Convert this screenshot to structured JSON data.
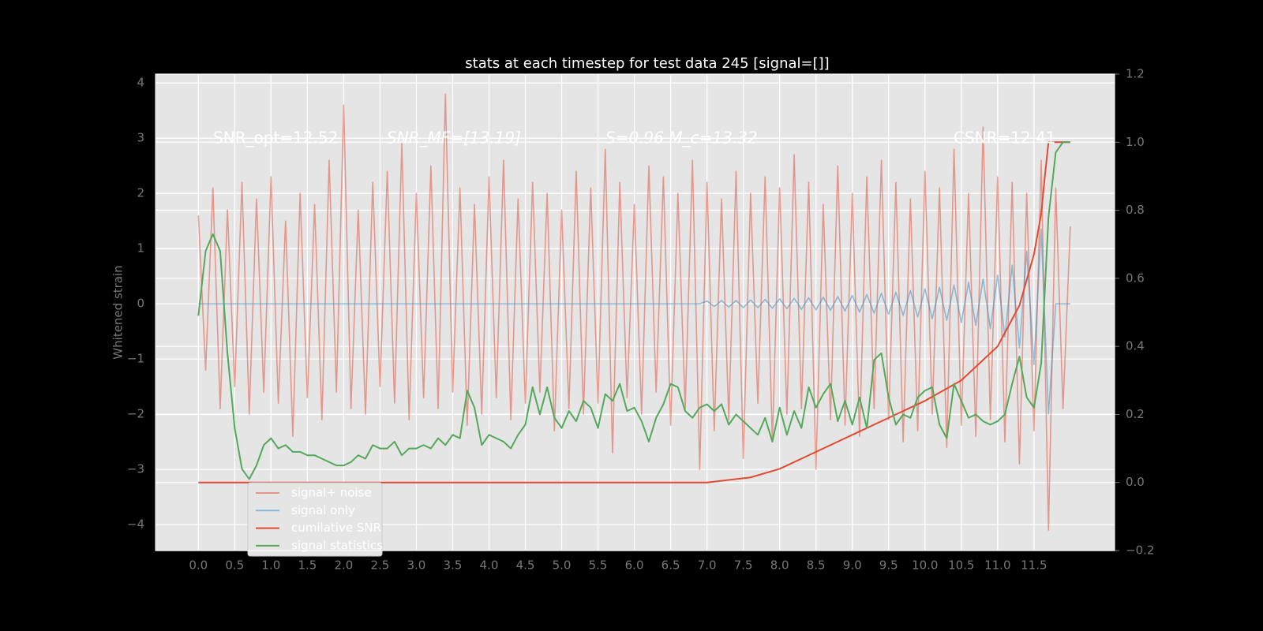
{
  "chart_data": {
    "type": "line",
    "title": "stats at each timestep for test data 245 [signal=[]]",
    "y_label": "Whitened strain",
    "annotations": [
      "SNR_opt=12.52",
      "SNR_MF=[13.19]",
      "S=0.96   M_c=13.32",
      "CSNR=12.41"
    ],
    "x": [
      0,
      0.1,
      0.2,
      0.3,
      0.4,
      0.5,
      0.6,
      0.7,
      0.8,
      0.9,
      1.0,
      1.1,
      1.2,
      1.3,
      1.4,
      1.5,
      1.6,
      1.7,
      1.8,
      1.9,
      2.0,
      2.1,
      2.2,
      2.3,
      2.4,
      2.5,
      2.6,
      2.7,
      2.8,
      2.9,
      3.0,
      3.1,
      3.2,
      3.3,
      3.4,
      3.5,
      3.6,
      3.7,
      3.8,
      3.9,
      4.0,
      4.1,
      4.2,
      4.3,
      4.4,
      4.5,
      4.6,
      4.7,
      4.8,
      4.9,
      5.0,
      5.1,
      5.2,
      5.3,
      5.4,
      5.5,
      5.6,
      5.7,
      5.8,
      5.9,
      6.0,
      6.1,
      6.2,
      6.3,
      6.4,
      6.5,
      6.6,
      6.7,
      6.8,
      6.9,
      7.0,
      7.1,
      7.2,
      7.3,
      7.4,
      7.5,
      7.6,
      7.7,
      7.8,
      7.9,
      8.0,
      8.1,
      8.2,
      8.3,
      8.4,
      8.5,
      8.6,
      8.7,
      8.8,
      8.9,
      9.0,
      9.1,
      9.2,
      9.3,
      9.4,
      9.5,
      9.6,
      9.7,
      9.8,
      9.9,
      10.0,
      10.1,
      10.2,
      10.3,
      10.4,
      10.5,
      10.6,
      10.7,
      10.8,
      10.9,
      11.0,
      11.1,
      11.2,
      11.3,
      11.4,
      11.5,
      11.6,
      11.7,
      11.8,
      11.9,
      12.0
    ],
    "series": [
      {
        "name": "signal+ noise",
        "color": "#E24A33",
        "opacity": 0.5,
        "axis": "y",
        "values": [
          1.6,
          -1.2,
          2.1,
          -1.9,
          1.7,
          -1.5,
          2.2,
          -2.0,
          1.9,
          -1.6,
          2.3,
          -1.8,
          1.5,
          -2.4,
          2.0,
          -1.7,
          1.8,
          -2.1,
          2.6,
          -1.6,
          3.6,
          -1.9,
          1.7,
          -2.0,
          2.2,
          -1.5,
          2.4,
          -1.8,
          2.9,
          -2.1,
          2.0,
          -1.7,
          2.5,
          -1.9,
          3.8,
          -1.6,
          2.1,
          -2.2,
          1.8,
          -2.0,
          2.3,
          -1.7,
          2.6,
          -2.1,
          1.9,
          -1.8,
          2.2,
          -1.6,
          2.0,
          -2.3,
          1.7,
          -1.9,
          2.4,
          -2.0,
          2.1,
          -1.8,
          2.8,
          -2.7,
          2.2,
          -1.7,
          1.8,
          -2.0,
          2.5,
          -1.6,
          2.3,
          -2.2,
          2.0,
          -1.9,
          2.6,
          -3.0,
          2.2,
          -2.3,
          1.9,
          -2.1,
          2.4,
          -2.8,
          2.0,
          -1.8,
          2.3,
          -2.5,
          2.1,
          -2.0,
          2.7,
          -1.9,
          2.2,
          -3.0,
          1.8,
          -2.1,
          2.5,
          -2.2,
          2.0,
          -2.4,
          2.3,
          -1.9,
          2.6,
          -2.1,
          2.2,
          -2.5,
          1.9,
          -2.3,
          2.4,
          -2.0,
          2.1,
          -2.6,
          2.8,
          -2.2,
          2.0,
          -2.4,
          3.2,
          -2.1,
          2.3,
          -2.5,
          2.2,
          -2.9,
          2.0,
          -2.3,
          2.6,
          -4.1,
          2.1,
          -1.9,
          1.4
        ]
      },
      {
        "name": "signal only",
        "color": "#348ABD",
        "opacity": 0.5,
        "axis": "y",
        "values": [
          0,
          0,
          0,
          0,
          0,
          0,
          0,
          0,
          0,
          0,
          0,
          0,
          0,
          0,
          0,
          0,
          0,
          0,
          0,
          0,
          0,
          0,
          0,
          0,
          0,
          0,
          0,
          0,
          0,
          0,
          0,
          0,
          0,
          0,
          0,
          0,
          0,
          0,
          0,
          0,
          0,
          0,
          0,
          0,
          0,
          0,
          0,
          0,
          0,
          0,
          0,
          0,
          0,
          0,
          0,
          0,
          0,
          0,
          0,
          0,
          0,
          0,
          0,
          0,
          0,
          0,
          0,
          0,
          0,
          0,
          0.05,
          -0.05,
          0.06,
          -0.06,
          0.06,
          -0.07,
          0.07,
          -0.07,
          0.08,
          -0.08,
          0.09,
          -0.09,
          0.1,
          -0.1,
          0.11,
          -0.11,
          0.12,
          -0.12,
          0.13,
          -0.13,
          0.15,
          -0.15,
          0.17,
          -0.17,
          0.19,
          -0.19,
          0.21,
          -0.21,
          0.24,
          -0.24,
          0.27,
          -0.27,
          0.3,
          -0.3,
          0.34,
          -0.34,
          0.39,
          -0.39,
          0.45,
          -0.45,
          0.52,
          -0.6,
          0.7,
          -0.8,
          0.95,
          -1.1,
          1.35,
          -2.0,
          0,
          0,
          0
        ]
      },
      {
        "name": "cumilative SNR",
        "color": "#E24A33",
        "opacity": 1,
        "axis": "y2",
        "x": [
          0,
          7.0,
          7.6,
          8.0,
          8.5,
          9.0,
          9.5,
          10.0,
          10.5,
          11.0,
          11.3,
          11.5,
          11.6,
          11.65,
          11.7,
          12.0
        ],
        "values": [
          0,
          0,
          0.015,
          0.04,
          0.09,
          0.14,
          0.19,
          0.24,
          0.3,
          0.4,
          0.52,
          0.67,
          0.79,
          0.9,
          1.0,
          1.0
        ]
      },
      {
        "name": "signal statistics",
        "color": "#55a85a",
        "opacity": 1,
        "axis": "y2",
        "values": [
          0.49,
          0.68,
          0.73,
          0.68,
          0.38,
          0.16,
          0.04,
          0.01,
          0.05,
          0.11,
          0.13,
          0.1,
          0.11,
          0.09,
          0.09,
          0.08,
          0.08,
          0.07,
          0.06,
          0.05,
          0.05,
          0.06,
          0.08,
          0.07,
          0.11,
          0.1,
          0.1,
          0.12,
          0.08,
          0.1,
          0.1,
          0.11,
          0.1,
          0.13,
          0.11,
          0.14,
          0.13,
          0.27,
          0.22,
          0.11,
          0.14,
          0.13,
          0.12,
          0.1,
          0.14,
          0.17,
          0.28,
          0.2,
          0.28,
          0.19,
          0.16,
          0.21,
          0.18,
          0.24,
          0.22,
          0.16,
          0.26,
          0.24,
          0.29,
          0.21,
          0.22,
          0.18,
          0.12,
          0.19,
          0.23,
          0.29,
          0.28,
          0.21,
          0.19,
          0.22,
          0.23,
          0.21,
          0.23,
          0.17,
          0.2,
          0.18,
          0.16,
          0.14,
          0.19,
          0.12,
          0.22,
          0.14,
          0.21,
          0.16,
          0.28,
          0.22,
          0.26,
          0.29,
          0.18,
          0.24,
          0.17,
          0.25,
          0.16,
          0.36,
          0.38,
          0.25,
          0.17,
          0.2,
          0.19,
          0.25,
          0.27,
          0.28,
          0.17,
          0.13,
          0.29,
          0.24,
          0.19,
          0.2,
          0.18,
          0.17,
          0.18,
          0.2,
          0.29,
          0.37,
          0.25,
          0.22,
          0.35,
          0.78,
          0.97,
          1.0,
          1.0
        ]
      }
    ],
    "xlim": [
      -0.59,
      12.61
    ],
    "xticks": [
      {
        "value": 0,
        "label": "0.0"
      },
      0.5,
      {
        "value": 1,
        "label": "1.0"
      },
      1.5,
      {
        "value": 2,
        "label": "2.0"
      },
      2.5,
      {
        "value": 3,
        "label": "3.0"
      },
      3.5,
      {
        "value": 4,
        "label": "4.0"
      },
      4.5,
      {
        "value": 5,
        "label": "5.0"
      },
      5.5,
      {
        "value": 6,
        "label": "6.0"
      },
      6.5,
      {
        "value": 7,
        "label": "7.0"
      },
      7.5,
      {
        "value": 8,
        "label": "8.0"
      },
      8.5,
      {
        "value": 9,
        "label": "9.0"
      },
      9.5,
      {
        "value": 10,
        "label": "10.0"
      },
      10.5,
      {
        "value": 11,
        "label": "11.0"
      },
      11.5
    ],
    "ylim": [
      -4.47,
      4.16
    ],
    "yticks": [
      {
        "value": -4,
        "label": "−4"
      },
      {
        "value": -3,
        "label": "−3"
      },
      {
        "value": -2,
        "label": "−2"
      },
      {
        "value": -1,
        "label": "−1"
      },
      0,
      1,
      2,
      3,
      4
    ],
    "y2lim": [
      -0.2,
      1.2
    ],
    "y2ticks": [
      {
        "value": -0.2,
        "label": "−0.2"
      },
      {
        "value": 0,
        "label": "0.0"
      },
      0.2,
      0.4,
      0.6,
      0.8,
      {
        "value": 1,
        "label": "1.0"
      },
      1.2
    ],
    "grid": true,
    "legend": "lower left"
  }
}
